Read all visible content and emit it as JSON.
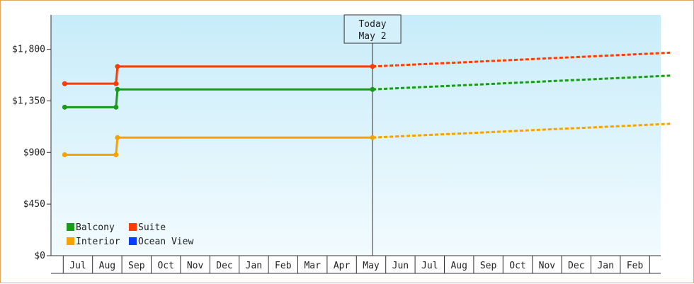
{
  "chart_data": {
    "type": "line",
    "title": "",
    "xlabel": "",
    "ylabel": "",
    "ylim": [
      0,
      2100
    ],
    "y_ticks": [
      {
        "value": 0,
        "label": "$0"
      },
      {
        "value": 450,
        "label": "$450"
      },
      {
        "value": 900,
        "label": "$900"
      },
      {
        "value": 1350,
        "label": "$1,350"
      },
      {
        "value": 1800,
        "label": "$1,800"
      }
    ],
    "x_ticks": [
      "Jul",
      "Aug",
      "Sep",
      "Oct",
      "Nov",
      "Dec",
      "Jan",
      "Feb",
      "Mar",
      "Apr",
      "May",
      "Jun",
      "Jul",
      "Aug",
      "Sep",
      "Oct",
      "Nov",
      "Dec",
      "Jan",
      "Feb"
    ],
    "today_marker": {
      "line1": "Today",
      "line2": "May 2",
      "month_index": 10.05
    },
    "grid": false,
    "legend_position": "bottom-left",
    "series": [
      {
        "name": "Balcony",
        "color": "#1a9a1a",
        "history": [
          [
            -0.45,
            1295
          ],
          [
            1.3,
            1295
          ],
          [
            1.35,
            1450
          ],
          [
            10.05,
            1450
          ]
        ],
        "forecast": [
          [
            10.05,
            1450
          ],
          [
            20.2,
            1570
          ]
        ]
      },
      {
        "name": "Suite",
        "color": "#ff3b00",
        "history": [
          [
            -0.45,
            1500
          ],
          [
            1.3,
            1500
          ],
          [
            1.35,
            1650
          ],
          [
            10.05,
            1650
          ]
        ],
        "forecast": [
          [
            10.05,
            1650
          ],
          [
            20.2,
            1770
          ]
        ]
      },
      {
        "name": "Interior",
        "color": "#f5a300",
        "history": [
          [
            -0.45,
            880
          ],
          [
            1.3,
            880
          ],
          [
            1.35,
            1030
          ],
          [
            10.05,
            1030
          ]
        ],
        "forecast": [
          [
            10.05,
            1030
          ],
          [
            20.2,
            1150
          ]
        ]
      },
      {
        "name": "Ocean View",
        "color": "#0a3cff",
        "history": [],
        "forecast": []
      }
    ]
  }
}
